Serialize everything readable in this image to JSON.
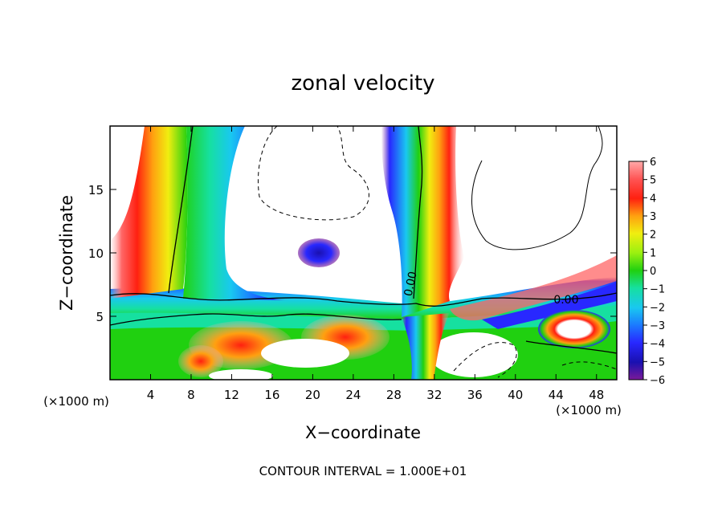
{
  "chart_data": {
    "type": "heatmap",
    "title": "zonal velocity",
    "xlabel": "X−coordinate",
    "ylabel": "Z−coordinate",
    "x_unit_left": "(×1000 m)",
    "x_unit_right": "(×1000 m)",
    "footer": "CONTOUR INTERVAL = 1.000E+01",
    "xlim": [
      0,
      50
    ],
    "ylim": [
      0,
      20
    ],
    "x_ticks": [
      4,
      8,
      12,
      16,
      20,
      24,
      28,
      32,
      36,
      40,
      44,
      48
    ],
    "y_ticks": [
      5,
      10,
      15
    ],
    "colorbar": {
      "range": [
        -6,
        6
      ],
      "ticks": [
        "6",
        "5",
        "4",
        "3",
        "2",
        "1",
        "0",
        "−1",
        "−2",
        "−3",
        "−4",
        "−5",
        "−6"
      ]
    },
    "contour_labels": [
      {
        "text": "0.00",
        "x": 30,
        "y": 7.5
      },
      {
        "text": "0.00",
        "x": 45,
        "y": 6
      }
    ],
    "features": [
      {
        "kind": "positive_band",
        "x": [
          3,
          8
        ],
        "z": [
          6,
          20
        ]
      },
      {
        "kind": "negative_band",
        "x": [
          8,
          13
        ],
        "z": [
          6,
          20
        ]
      },
      {
        "kind": "negative_column",
        "x": [
          27,
          31
        ],
        "z": [
          8,
          20
        ]
      },
      {
        "kind": "positive_column",
        "x": [
          31,
          33
        ],
        "z": [
          5,
          20
        ]
      },
      {
        "kind": "negative_blob",
        "x": [
          19,
          22
        ],
        "z": [
          9.5,
          11
        ]
      },
      {
        "kind": "negative_layer",
        "x": [
          0,
          50
        ],
        "z": [
          4.5,
          6.5
        ]
      },
      {
        "kind": "positive_blobs",
        "x": [
          6,
          30
        ],
        "z": [
          1,
          4
        ]
      },
      {
        "kind": "positive_blob",
        "x": [
          43,
          48
        ],
        "z": [
          3,
          5
        ]
      }
    ]
  }
}
